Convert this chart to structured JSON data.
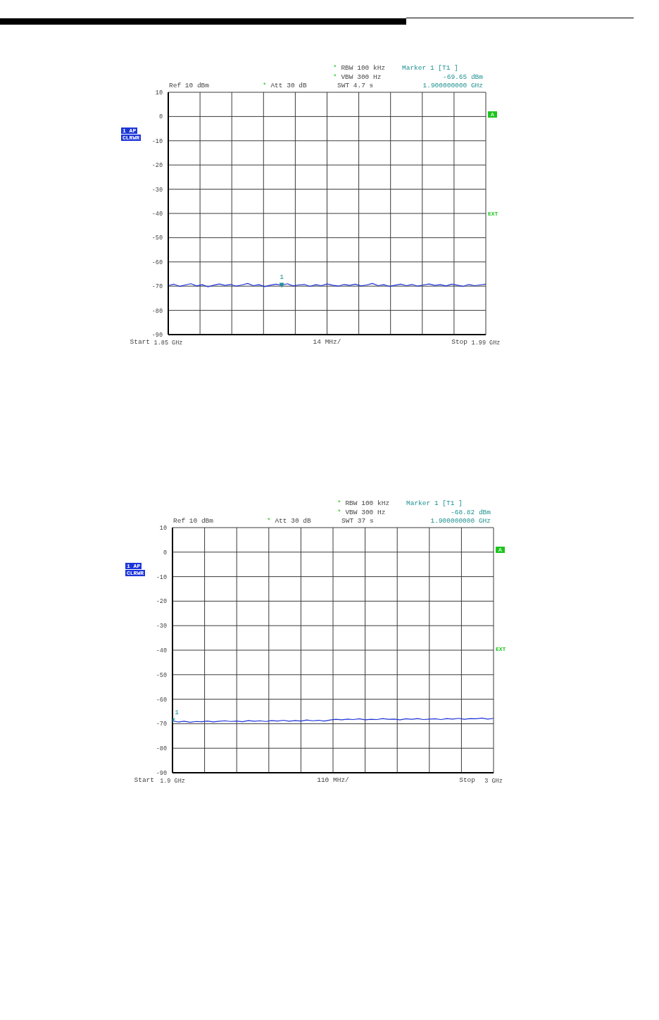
{
  "chart_data": [
    {
      "type": "line",
      "xlim": [
        1.85,
        1.99
      ],
      "xticks": [
        {
          "value": 1.85,
          "label": "1.85 GHz"
        },
        {
          "value": 1.864,
          "label": null
        },
        {
          "value": 1.878,
          "label": null
        },
        {
          "value": 1.892,
          "label": null
        },
        {
          "value": 1.906,
          "label": null
        },
        {
          "value": 1.92,
          "label": null
        },
        {
          "value": 1.934,
          "label": null
        },
        {
          "value": 1.948,
          "label": null
        },
        {
          "value": 1.962,
          "label": null
        },
        {
          "value": 1.976,
          "label": null
        },
        {
          "value": 1.99,
          "label": "1.99 GHz"
        }
      ],
      "ylim": [
        -90,
        10
      ],
      "yticks": [
        10,
        0,
        -10,
        -20,
        -30,
        -40,
        -50,
        -60,
        -70,
        -80,
        -90
      ],
      "grid": true,
      "annotations": [
        "* RBW 100 kHz",
        "* VBW 300 Hz",
        "Ref 10 dBm",
        "* Att 30 dB",
        "SWT 4.7 s",
        "Marker 1 [T1 ]",
        "-69.65 dBm",
        "1.900000000 GHz",
        "1 AP",
        "CLRWR",
        "A",
        "EXT",
        "Start",
        "14 MHz/",
        "Stop",
        {
          "text": "1",
          "x": 1.9,
          "y": -69.65
        }
      ],
      "series": [
        {
          "color": "#1e34d8",
          "x": [
            1.85,
            1.8525,
            1.855,
            1.8575,
            1.86,
            1.8625,
            1.865,
            1.8675,
            1.87,
            1.8725,
            1.875,
            1.8775,
            1.88,
            1.8825,
            1.885,
            1.8875,
            1.89,
            1.8925,
            1.895,
            1.8975,
            1.9,
            1.9025,
            1.905,
            1.9075,
            1.91,
            1.9125,
            1.915,
            1.9175,
            1.92,
            1.9225,
            1.925,
            1.9275,
            1.93,
            1.9325,
            1.935,
            1.9375,
            1.94,
            1.9425,
            1.945,
            1.9475,
            1.95,
            1.9525,
            1.955,
            1.9575,
            1.96,
            1.9625,
            1.965,
            1.9675,
            1.97,
            1.9725,
            1.975,
            1.9775,
            1.98,
            1.9825,
            1.985,
            1.9875,
            1.99
          ],
          "values": [
            -69.8,
            -69.2,
            -70.1,
            -69.5,
            -69.0,
            -69.9,
            -69.4,
            -70.3,
            -69.6,
            -69.1,
            -69.7,
            -69.3,
            -70.0,
            -69.5,
            -68.9,
            -69.8,
            -69.4,
            -70.2,
            -69.6,
            -69.2,
            -69.65,
            -69.0,
            -69.9,
            -69.5,
            -69.3,
            -70.1,
            -69.4,
            -69.8,
            -69.1,
            -69.6,
            -70.0,
            -69.3,
            -69.7,
            -69.2,
            -69.9,
            -69.5,
            -68.9,
            -69.8,
            -69.4,
            -70.1,
            -69.6,
            -69.2,
            -69.8,
            -69.3,
            -70.0,
            -69.5,
            -69.1,
            -69.7,
            -69.4,
            -69.9,
            -69.2,
            -69.6,
            -70.1,
            -69.3,
            -69.8,
            -69.5,
            -69.2
          ]
        },
        {
          "type": "scatter",
          "color": "#1f8f8f",
          "marker": "triangle",
          "x": [
            1.9
          ],
          "values": [
            -69.65
          ]
        }
      ]
    },
    {
      "type": "line",
      "xlim": [
        1.9,
        3.0
      ],
      "xticks": [
        {
          "value": 1.9,
          "label": "1.9 GHz"
        },
        {
          "value": 2.01,
          "label": null
        },
        {
          "value": 2.12,
          "label": null
        },
        {
          "value": 2.23,
          "label": null
        },
        {
          "value": 2.34,
          "label": null
        },
        {
          "value": 2.45,
          "label": null
        },
        {
          "value": 2.56,
          "label": null
        },
        {
          "value": 2.67,
          "label": null
        },
        {
          "value": 2.78,
          "label": null
        },
        {
          "value": 2.89,
          "label": null
        },
        {
          "value": 3.0,
          "label": "3 GHz"
        }
      ],
      "ylim": [
        -90,
        10
      ],
      "yticks": [
        10,
        0,
        -10,
        -20,
        -30,
        -40,
        -50,
        -60,
        -70,
        -80,
        -90
      ],
      "grid": true,
      "annotations": [
        "* RBW 100 kHz",
        "* VBW 300 Hz",
        "Ref 10 dBm",
        "* Att 30 dB",
        "SWT 37 s",
        "Marker 1 [T1 ]",
        "-68.82 dBm",
        "1.900000000 GHz",
        "1 AP",
        "CLRWR",
        "A",
        "EXT",
        "Start",
        "110 MHz/",
        "Stop",
        {
          "text": "1",
          "x": 1.9,
          "y": -68.82
        }
      ],
      "series": [
        {
          "color": "#1e34d8",
          "x": [
            1.9,
            1.92,
            1.94,
            1.96,
            1.98,
            2,
            2.02,
            2.04,
            2.06,
            2.08,
            2.1,
            2.12,
            2.14,
            2.16,
            2.18,
            2.2,
            2.22,
            2.24,
            2.26,
            2.28,
            2.3,
            2.32,
            2.34,
            2.36,
            2.38,
            2.4,
            2.42,
            2.44,
            2.46,
            2.48,
            2.5,
            2.52,
            2.54,
            2.56,
            2.58,
            2.6,
            2.62,
            2.64,
            2.66,
            2.68,
            2.7,
            2.72,
            2.74,
            2.76,
            2.78,
            2.8,
            2.82,
            2.84,
            2.86,
            2.88,
            2.9,
            2.92,
            2.94,
            2.96,
            2.98,
            3.0
          ],
          "values": [
            -68.82,
            -69.3,
            -69.0,
            -69.4,
            -69.1,
            -69.2,
            -68.9,
            -69.3,
            -69.0,
            -68.8,
            -69.1,
            -68.9,
            -69.2,
            -68.7,
            -69.0,
            -68.8,
            -69.1,
            -68.7,
            -68.9,
            -68.6,
            -69.0,
            -68.7,
            -68.9,
            -68.5,
            -68.8,
            -68.6,
            -68.9,
            -68.5,
            -68.2,
            -68.4,
            -68.1,
            -68.3,
            -68.0,
            -68.4,
            -68.2,
            -68.3,
            -67.9,
            -68.2,
            -68.1,
            -68.4,
            -68.0,
            -68.2,
            -67.9,
            -68.3,
            -68.1,
            -68.0,
            -68.3,
            -67.9,
            -68.1,
            -67.8,
            -68.2,
            -67.9,
            -68.0,
            -67.7,
            -68.1,
            -67.8
          ]
        },
        {
          "type": "scatter",
          "color": "#1f8f8f",
          "marker": "triangle",
          "x": [
            1.9
          ],
          "values": [
            -68.82
          ]
        }
      ]
    }
  ]
}
